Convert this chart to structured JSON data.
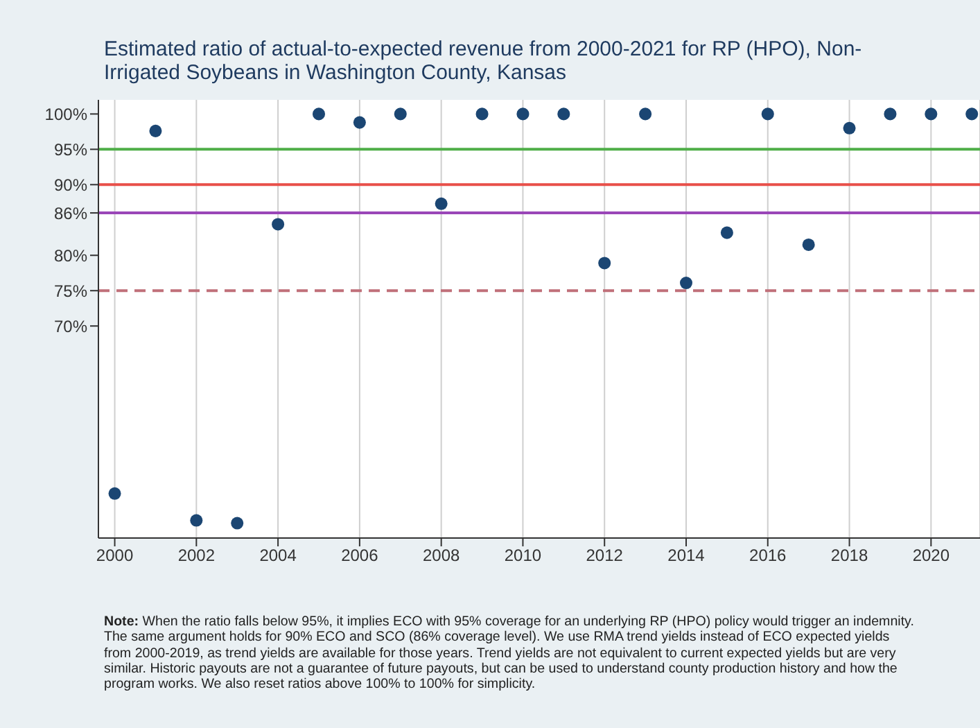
{
  "chart_data": {
    "type": "scatter",
    "title": "Estimated ratio of actual-to-expected revenue from 2000-2021 for RP (HPO), Non-Irrigated Soybeans in Washington County, Kansas",
    "x": [
      2000,
      2001,
      2002,
      2003,
      2004,
      2005,
      2006,
      2007,
      2008,
      2009,
      2010,
      2011,
      2012,
      2013,
      2014,
      2015,
      2016,
      2017,
      2018,
      2019,
      2020,
      2021
    ],
    "series": [
      {
        "color": "#1b4673",
        "values": [
          46.3,
          97.6,
          42.5,
          42.1,
          84.4,
          100,
          98.8,
          100,
          87.3,
          100,
          100,
          100,
          78.9,
          100,
          76.1,
          83.2,
          100,
          81.5,
          98.0,
          100,
          100,
          100
        ]
      }
    ],
    "xlim": [
      1999.6,
      2021.2
    ],
    "xticks": [
      2000,
      2002,
      2004,
      2006,
      2008,
      2010,
      2012,
      2014,
      2016,
      2018,
      2020
    ],
    "ylim": [
      40,
      102
    ],
    "yticks": [
      {
        "value": 100,
        "label": "100%"
      },
      {
        "value": 95,
        "label": "95%"
      },
      {
        "value": 90,
        "label": "90%"
      },
      {
        "value": 86,
        "label": "86%"
      },
      {
        "value": 80,
        "label": "80%"
      },
      {
        "value": 75,
        "label": "75%"
      },
      {
        "value": 70,
        "label": "70%"
      }
    ],
    "ref_lines": [
      {
        "axis": "y",
        "value": 95,
        "color": "#4fae48"
      },
      {
        "axis": "y",
        "value": 90,
        "color": "#e8504a"
      },
      {
        "axis": "y",
        "value": 86,
        "color": "#9a46b8"
      },
      {
        "axis": "y",
        "value": 75,
        "color": "#c0707a",
        "line_style": "dashed"
      }
    ],
    "annotations": [
      "Note: When the ratio falls below 95%, it implies ECO with 95% coverage for an underlying RP (HPO) policy would trigger an indemnity. The same argument holds for 90% ECO and SCO (86% coverage level). We use RMA trend yields instead of ECO expected yields from 2000-2019, as trend yields are available for those years. Trend yields are not equivalent to current expected yields but are very similar. Historic payouts are not a guarantee of future payouts, but can be used to understand county production history and how the program works. We also reset ratios above 100% to 100% for simplicity."
    ],
    "grid": "x",
    "marker": "circle",
    "legend": false
  }
}
